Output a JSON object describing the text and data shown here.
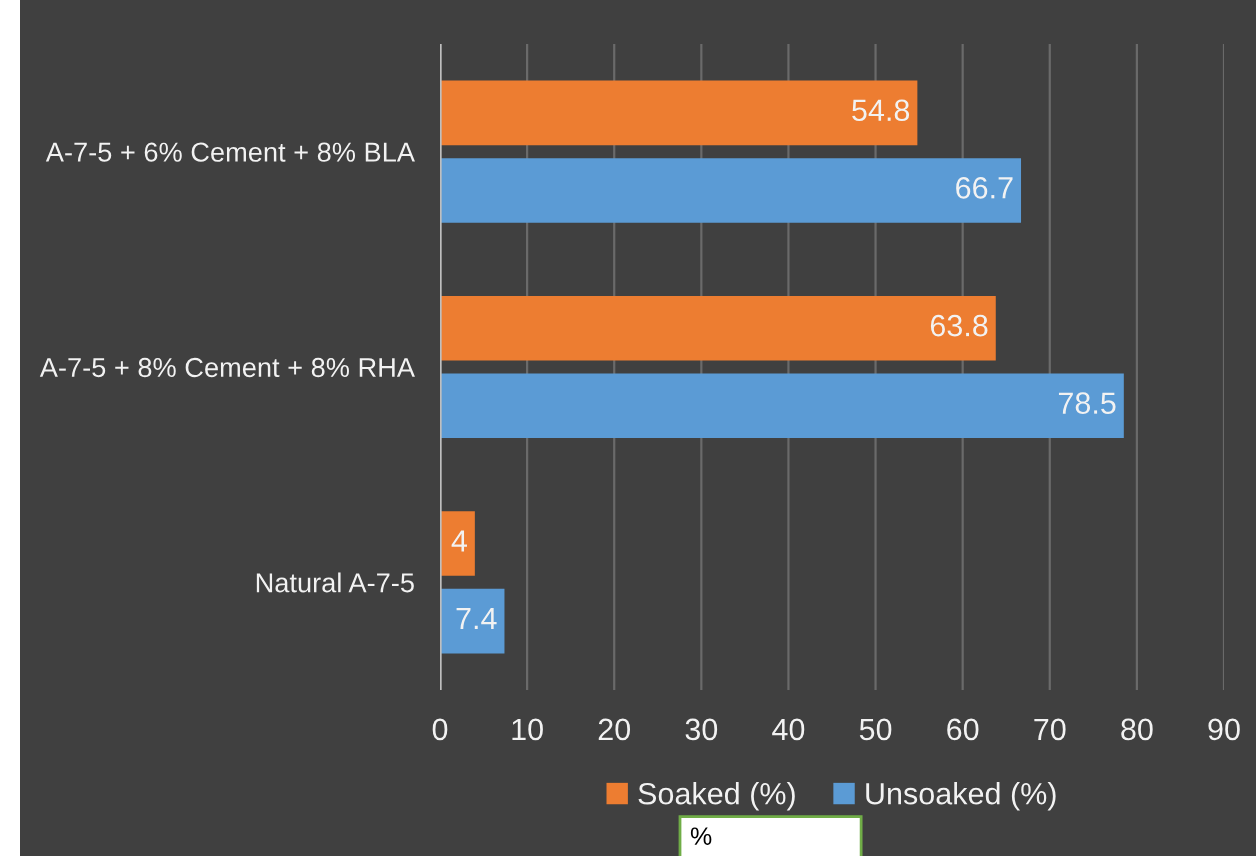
{
  "chart_data": {
    "type": "bar",
    "orientation": "horizontal",
    "categories": [
      "A-7-5 + 6% Cement + 8% BLA",
      "A-7-5 + 8% Cement + 8% RHA",
      "Natural A-7-5"
    ],
    "series": [
      {
        "name": "Soaked (%)",
        "color": "#ed7d31",
        "values": [
          54.8,
          63.8,
          4
        ]
      },
      {
        "name": "Unsoaked (%)",
        "color": "#5b9bd5",
        "values": [
          66.7,
          78.5,
          7.4
        ]
      }
    ],
    "xlim": [
      0,
      90
    ],
    "xticks": [
      0,
      10,
      20,
      30,
      40,
      50,
      60,
      70,
      80,
      90
    ],
    "grid": "x",
    "legend": "bottom",
    "data_labels": true,
    "annotations": [
      "%"
    ]
  }
}
